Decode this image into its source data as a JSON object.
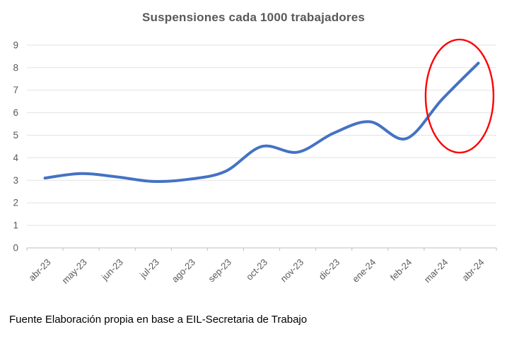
{
  "footer": {
    "source": "Fuente Elaboración propia en base a EIL-Secretaria de Trabajo"
  },
  "chart_data": {
    "type": "line",
    "title": "Suspensiones cada 1000 trabajadores",
    "categories": [
      "abr-23",
      "may-23",
      "jun-23",
      "jul-23",
      "ago-23",
      "sep-23",
      "oct-23",
      "nov-23",
      "dic-23",
      "ene-24",
      "feb-24",
      "mar-24",
      "abr-24"
    ],
    "values": [
      3.1,
      3.3,
      3.15,
      2.95,
      3.05,
      3.4,
      4.5,
      4.25,
      5.1,
      5.6,
      4.85,
      6.6,
      8.2
    ],
    "ylim": [
      0,
      9
    ],
    "ytick_step": 1,
    "yticks": [
      0,
      1,
      2,
      3,
      4,
      5,
      6,
      7,
      8,
      9
    ],
    "grid": "horizontal",
    "legend": "none",
    "smooth": true,
    "line_width": 4,
    "colors": {
      "line": "#4472c4",
      "grid": "#e3e3e3",
      "axis": "#bfbfbf",
      "tick_label": "#595959",
      "title": "#595959",
      "annotation": "#ff0000",
      "source_text": "#000000"
    },
    "annotation": {
      "type": "ellipse",
      "note": "highlights sharp rise during mar-24 / abr-24",
      "x_index": 11.48,
      "y_value": 6.74,
      "rx_index": 0.94,
      "ry_value": 2.51
    }
  }
}
